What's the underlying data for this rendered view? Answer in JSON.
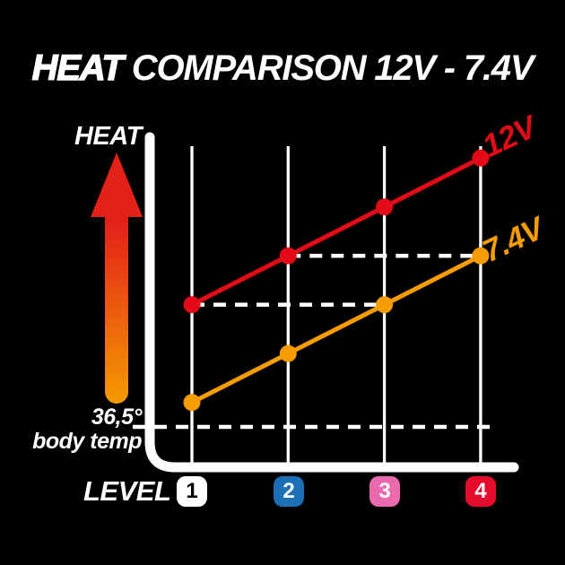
{
  "title": {
    "emphasis": "HEAT",
    "rest": "COMPARISON 12V - 7.4V"
  },
  "chart_data": {
    "type": "line",
    "title": "HEAT COMPARISON 12V - 7.4V",
    "xlabel": "LEVEL",
    "ylabel": "HEAT",
    "categories": [
      "1",
      "2",
      "3",
      "4"
    ],
    "series": [
      {
        "name": "12V",
        "color": "#e30b17",
        "values": [
          2.5,
          3.5,
          4.5,
          5.5
        ]
      },
      {
        "name": "7.4V",
        "color": "#f59c00",
        "values": [
          0.5,
          1.5,
          2.5,
          3.5
        ]
      }
    ],
    "value_unit": "relative heat units above body temperature (estimated from chart geometry; no numeric y ticks shown)",
    "ylim": [
      -0.6,
      6.6
    ],
    "grid": "vertical gridlines only, one per level",
    "legend": "colored labels at line ends",
    "reference_line": {
      "line1": "36,5°",
      "line2": "body temp",
      "value": 0
    },
    "equal_heat_connectors": [
      {
        "value": 2.5,
        "from_level": 1,
        "to_level": 3,
        "meaning": "12V level 1 heats like 7.4V level 3"
      },
      {
        "value": 3.5,
        "from_level": 2,
        "to_level": 4,
        "meaning": "12V level 2 heats like 7.4V level 4"
      }
    ]
  },
  "arrow": {
    "top_color": "#e32119",
    "bottom_color": "#f59c00"
  },
  "levels": [
    {
      "label": "1",
      "bg": "#ffffff",
      "fg": "#000000"
    },
    {
      "label": "2",
      "bg": "#1b6fb5",
      "fg": "#ffffff"
    },
    {
      "label": "3",
      "bg": "#ea6aae",
      "fg": "#ffffff"
    },
    {
      "label": "4",
      "bg": "#e40b2c",
      "fg": "#ffffff"
    }
  ],
  "colors": {
    "background": "#000000",
    "text": "#ffffff",
    "grid": "#ffffff",
    "dashed": "#ffffff"
  }
}
